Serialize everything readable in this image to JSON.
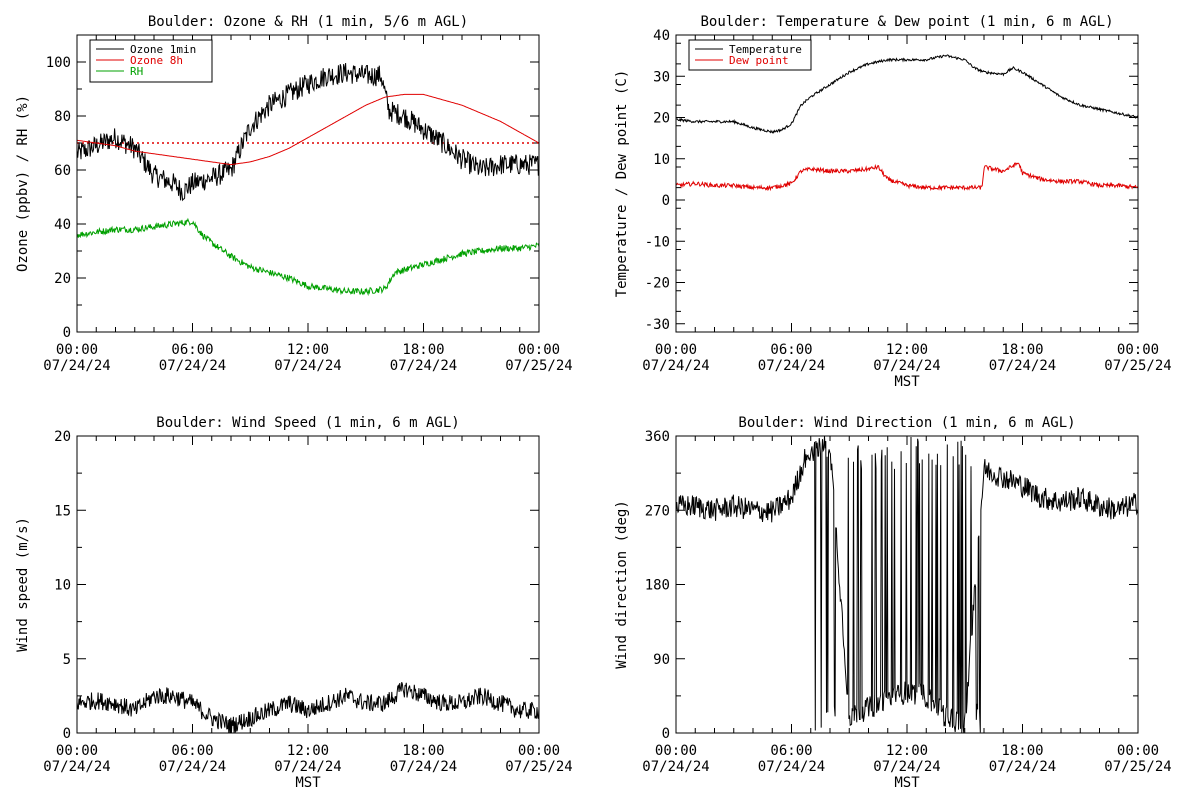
{
  "chart_data": [
    {
      "type": "line",
      "title": "Boulder: Ozone & RH (1 min, 5/6 m AGL)",
      "ylabel": "Ozone (ppbv) / RH (%)",
      "xlabel": "",
      "xlim": [
        0,
        24
      ],
      "ylim": [
        0,
        110
      ],
      "yticks": [
        0,
        20,
        40,
        60,
        80,
        100
      ],
      "xticks": [
        0,
        6,
        12,
        18,
        24
      ],
      "xtick_labels": [
        [
          "00:00",
          "07/24/24"
        ],
        [
          "06:00",
          "07/24/24"
        ],
        [
          "12:00",
          "07/24/24"
        ],
        [
          "18:00",
          "07/24/24"
        ],
        [
          "00:00",
          "07/25/24"
        ]
      ],
      "legend": "top-left",
      "reference_line": {
        "y": 70,
        "color": "#e00000",
        "style": "dotted"
      },
      "series": [
        {
          "name": "Ozone 1min",
          "color": "#000000",
          "noise": 4,
          "x": [
            0,
            1,
            2,
            3,
            4,
            5,
            5.5,
            6,
            7,
            8,
            9,
            10,
            11,
            12,
            13,
            14,
            15,
            15.8,
            16.2,
            17,
            18,
            19,
            20,
            21,
            22,
            23,
            24
          ],
          "y": [
            66,
            69,
            72,
            68,
            58,
            55,
            52,
            55,
            57,
            60,
            76,
            84,
            88,
            92,
            95,
            96,
            95,
            95,
            82,
            80,
            75,
            70,
            64,
            60,
            62,
            62,
            62
          ]
        },
        {
          "name": "Ozone 8h",
          "color": "#e00000",
          "noise": 0,
          "x": [
            0,
            1,
            2,
            3,
            4,
            5,
            6,
            7,
            8,
            9,
            10,
            11,
            12,
            13,
            14,
            15,
            16,
            17,
            18,
            19,
            20,
            21,
            22,
            23,
            24
          ],
          "y": [
            71,
            70,
            69,
            67,
            66,
            65,
            64,
            63,
            62,
            63,
            65,
            68,
            72,
            76,
            80,
            84,
            87,
            88,
            88,
            86,
            84,
            81,
            78,
            74,
            70
          ]
        },
        {
          "name": "RH",
          "color": "#00a000",
          "noise": 1.2,
          "x": [
            0,
            1,
            2,
            3,
            4,
            5,
            6,
            6.5,
            7,
            8,
            9,
            10,
            11,
            12,
            13,
            14,
            15,
            16,
            16.5,
            17,
            18,
            19,
            20,
            21,
            22,
            23,
            24
          ],
          "y": [
            36,
            37,
            38,
            38,
            39,
            40,
            41,
            36,
            33,
            28,
            24,
            22,
            20,
            17,
            16,
            15,
            15,
            16,
            22,
            23,
            25,
            27,
            29,
            30,
            31,
            31,
            32
          ]
        }
      ]
    },
    {
      "type": "line",
      "title": "Boulder: Temperature & Dew point (1 min, 6 m AGL)",
      "ylabel": "Temperature / Dew point (C)",
      "xlabel": "MST",
      "xlim": [
        0,
        24
      ],
      "ylim": [
        -32,
        40
      ],
      "yticks": [
        -30,
        -20,
        -10,
        0,
        10,
        20,
        30,
        40
      ],
      "xticks": [
        0,
        6,
        12,
        18,
        24
      ],
      "xtick_labels": [
        [
          "00:00",
          "07/24/24"
        ],
        [
          "06:00",
          "07/24/24"
        ],
        [
          "12:00",
          "07/24/24"
        ],
        [
          "18:00",
          "07/24/24"
        ],
        [
          "00:00",
          "07/25/24"
        ]
      ],
      "legend": "top-left",
      "series": [
        {
          "name": "Temperature",
          "color": "#000000",
          "noise": 0.3,
          "x": [
            0,
            1,
            2,
            3,
            4,
            5,
            5.5,
            6,
            6.5,
            7,
            8,
            9,
            10,
            11,
            12,
            13,
            14,
            15,
            15.5,
            16,
            17,
            17.5,
            18,
            19,
            20,
            21,
            22,
            23,
            24
          ],
          "y": [
            19.5,
            19,
            19,
            19,
            17.5,
            16.5,
            17,
            18.5,
            23,
            25,
            28,
            31,
            33,
            34,
            34,
            34,
            35,
            34,
            32,
            31,
            30.5,
            32,
            31,
            28,
            25,
            23,
            22,
            21,
            20
          ]
        },
        {
          "name": "Dew point",
          "color": "#e00000",
          "noise": 0.5,
          "x": [
            0,
            1,
            2,
            3,
            4,
            5,
            6,
            6.5,
            7,
            8,
            9,
            10,
            10.5,
            11,
            12,
            13,
            14,
            15,
            15.9,
            16,
            17,
            17.8,
            18,
            19,
            20,
            21,
            22,
            23,
            24
          ],
          "y": [
            3.5,
            4,
            3.5,
            3.5,
            3,
            3,
            4,
            7,
            7.5,
            7,
            7,
            7.5,
            8,
            5,
            3.5,
            3,
            3,
            3,
            3,
            8,
            7,
            9,
            6.5,
            5,
            4.5,
            4.5,
            3.5,
            3.5,
            3
          ]
        }
      ]
    },
    {
      "type": "line",
      "title": "Boulder: Wind Speed (1 min, 6 m AGL)",
      "ylabel": "Wind speed (m/s)",
      "xlabel": "MST",
      "xlim": [
        0,
        24
      ],
      "ylim": [
        0,
        20
      ],
      "yticks": [
        0,
        5,
        10,
        15,
        20
      ],
      "xticks": [
        0,
        6,
        12,
        18,
        24
      ],
      "xtick_labels": [
        [
          "00:00",
          "07/24/24"
        ],
        [
          "06:00",
          "07/24/24"
        ],
        [
          "12:00",
          "07/24/24"
        ],
        [
          "18:00",
          "07/24/24"
        ],
        [
          "00:00",
          "07/25/24"
        ]
      ],
      "series": [
        {
          "name": "",
          "color": "#000000",
          "noise": 0.6,
          "x": [
            0,
            1,
            2,
            3,
            4,
            5,
            6,
            7,
            8,
            9,
            10,
            11,
            12,
            13,
            14,
            15,
            16,
            17,
            18,
            19,
            20,
            21,
            22,
            23,
            24
          ],
          "y": [
            2,
            2.2,
            2,
            1.5,
            2.5,
            2.5,
            2,
            1,
            0.5,
            1,
            1.5,
            2,
            1.5,
            2,
            2.5,
            2,
            2,
            3,
            2.5,
            2,
            2,
            2.5,
            2,
            1.5,
            1.5
          ]
        }
      ]
    },
    {
      "type": "line",
      "title": "Boulder: Wind Direction (1 min, 6 m AGL)",
      "ylabel": "Wind direction (deg)",
      "xlabel": "MST",
      "xlim": [
        0,
        24
      ],
      "ylim": [
        0,
        360
      ],
      "yticks": [
        0,
        90,
        180,
        270,
        360
      ],
      "xticks": [
        0,
        6,
        12,
        18,
        24
      ],
      "xtick_labels": [
        [
          "00:00",
          "07/24/24"
        ],
        [
          "06:00",
          "07/24/24"
        ],
        [
          "12:00",
          "07/24/24"
        ],
        [
          "18:00",
          "07/24/24"
        ],
        [
          "00:00",
          "07/25/24"
        ]
      ],
      "series": [
        {
          "name": "",
          "color": "#000000",
          "noise": 14,
          "wrap_range": [
            6.8,
            16.0
          ],
          "x": [
            0,
            1,
            2,
            3,
            4,
            5,
            6,
            6.8,
            8,
            9,
            10,
            11,
            12,
            13,
            14,
            15,
            16,
            17,
            18,
            19,
            20,
            21,
            22,
            23,
            24
          ],
          "y": [
            275,
            275,
            270,
            275,
            270,
            268,
            285,
            340,
            350,
            20,
            30,
            40,
            50,
            45,
            20,
            10,
            320,
            310,
            300,
            285,
            280,
            285,
            275,
            270,
            280
          ]
        }
      ]
    }
  ]
}
